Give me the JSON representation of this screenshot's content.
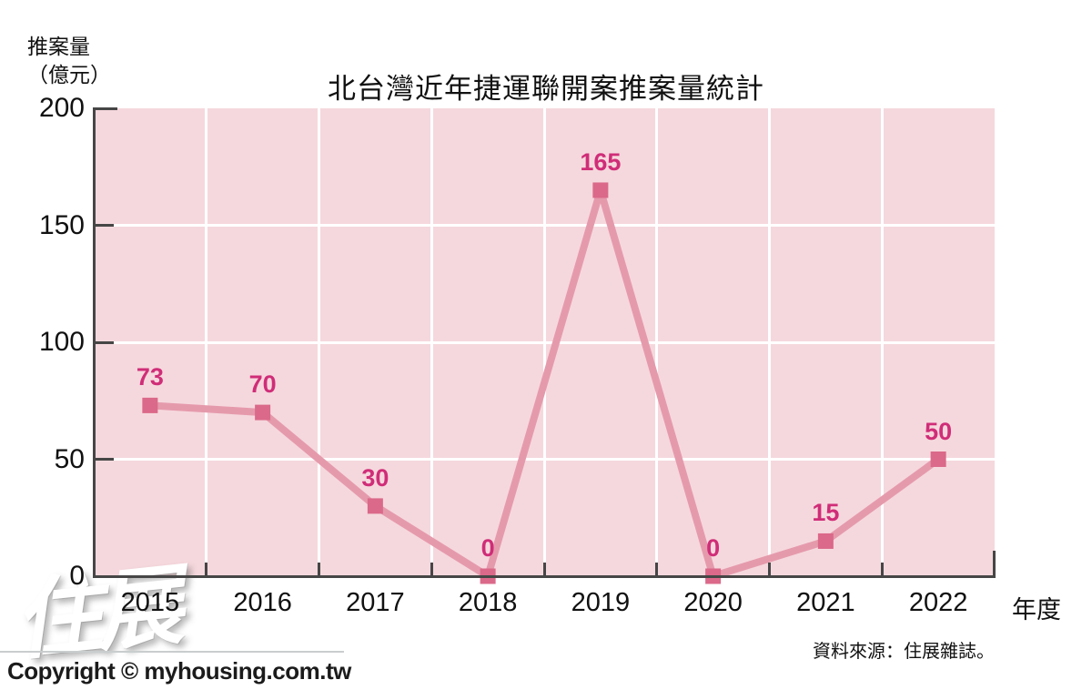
{
  "chart_data": {
    "type": "line",
    "title": "北台灣近年捷運聯開案推案量統計",
    "ylabel_lines": [
      "推案量",
      "（億元）"
    ],
    "xlabel": "年度",
    "categories": [
      "2015",
      "2016",
      "2017",
      "2018",
      "2019",
      "2020",
      "2021",
      "2022"
    ],
    "values": [
      73,
      70,
      30,
      0,
      165,
      0,
      15,
      50
    ],
    "yticks": [
      0,
      50,
      100,
      150,
      200
    ],
    "ylim": [
      0,
      200
    ],
    "grid": true,
    "legend_position": "none",
    "colors": {
      "plot_bg": "#f5d8dd",
      "grid": "#ffffff",
      "line": "#e59aac",
      "marker": "#db6989",
      "data_label": "#d02d78",
      "axis": "#464646",
      "text": "#111111"
    }
  },
  "source_note": "資料來源：住展雜誌。",
  "watermark": "住展",
  "footer": {
    "copyright": "Copyright © myhousing.com.tw"
  }
}
